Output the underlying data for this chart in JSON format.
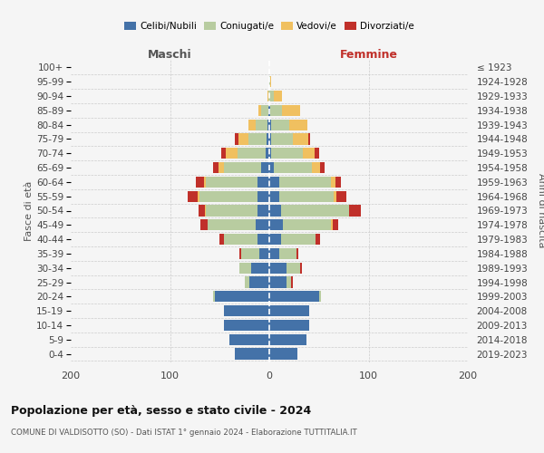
{
  "age_groups": [
    "0-4",
    "5-9",
    "10-14",
    "15-19",
    "20-24",
    "25-29",
    "30-34",
    "35-39",
    "40-44",
    "45-49",
    "50-54",
    "55-59",
    "60-64",
    "65-69",
    "70-74",
    "75-79",
    "80-84",
    "85-89",
    "90-94",
    "95-99",
    "100+"
  ],
  "birth_years": [
    "2019-2023",
    "2014-2018",
    "2009-2013",
    "2004-2008",
    "1999-2003",
    "1994-1998",
    "1989-1993",
    "1984-1988",
    "1979-1983",
    "1974-1978",
    "1969-1973",
    "1964-1968",
    "1959-1963",
    "1954-1958",
    "1949-1953",
    "1944-1948",
    "1939-1943",
    "1934-1938",
    "1929-1933",
    "1924-1928",
    "≤ 1923"
  ],
  "colors": {
    "celibi": "#4472a8",
    "coniugati": "#b8cca0",
    "vedovi": "#f0c060",
    "divorziati": "#c0302a"
  },
  "maschi": {
    "celibi": [
      35,
      40,
      46,
      46,
      55,
      20,
      18,
      10,
      12,
      14,
      12,
      12,
      12,
      8,
      4,
      3,
      2,
      1,
      0,
      0,
      0
    ],
    "coniugati": [
      0,
      0,
      0,
      0,
      2,
      5,
      12,
      18,
      34,
      48,
      52,
      58,
      52,
      38,
      28,
      18,
      12,
      7,
      1,
      0,
      0
    ],
    "vedovi": [
      0,
      0,
      0,
      0,
      0,
      0,
      0,
      0,
      0,
      0,
      1,
      2,
      2,
      5,
      12,
      10,
      7,
      3,
      1,
      0,
      0
    ],
    "divorziati": [
      0,
      0,
      0,
      0,
      0,
      0,
      0,
      2,
      4,
      7,
      6,
      10,
      8,
      6,
      4,
      4,
      0,
      0,
      0,
      0,
      0
    ]
  },
  "femmine": {
    "celibi": [
      28,
      37,
      40,
      40,
      50,
      17,
      17,
      10,
      12,
      14,
      12,
      10,
      10,
      5,
      2,
      2,
      2,
      1,
      0,
      0,
      0
    ],
    "coniugati": [
      0,
      0,
      0,
      0,
      2,
      5,
      14,
      17,
      35,
      48,
      68,
      55,
      52,
      38,
      32,
      22,
      18,
      12,
      5,
      1,
      0
    ],
    "vedovi": [
      0,
      0,
      0,
      0,
      0,
      0,
      0,
      0,
      0,
      2,
      0,
      3,
      5,
      8,
      12,
      15,
      18,
      18,
      8,
      1,
      0
    ],
    "divorziati": [
      0,
      0,
      0,
      0,
      0,
      2,
      2,
      2,
      4,
      5,
      12,
      10,
      5,
      5,
      4,
      2,
      0,
      0,
      0,
      0,
      0
    ]
  },
  "title": "Popolazione per età, sesso e stato civile - 2024",
  "subtitle": "COMUNE DI VALDISOTTO (SO) - Dati ISTAT 1° gennaio 2024 - Elaborazione TUTTITALIA.IT",
  "header_left": "Maschi",
  "header_right": "Femmine",
  "ylabel_left": "Fasce di età",
  "ylabel_right": "Anni di nascita",
  "xlim": 200,
  "bg_color": "#f5f5f5",
  "grid_color": "#cccccc",
  "legend_labels": [
    "Celibi/Nubili",
    "Coniugati/e",
    "Vedovi/e",
    "Divorziati/e"
  ]
}
